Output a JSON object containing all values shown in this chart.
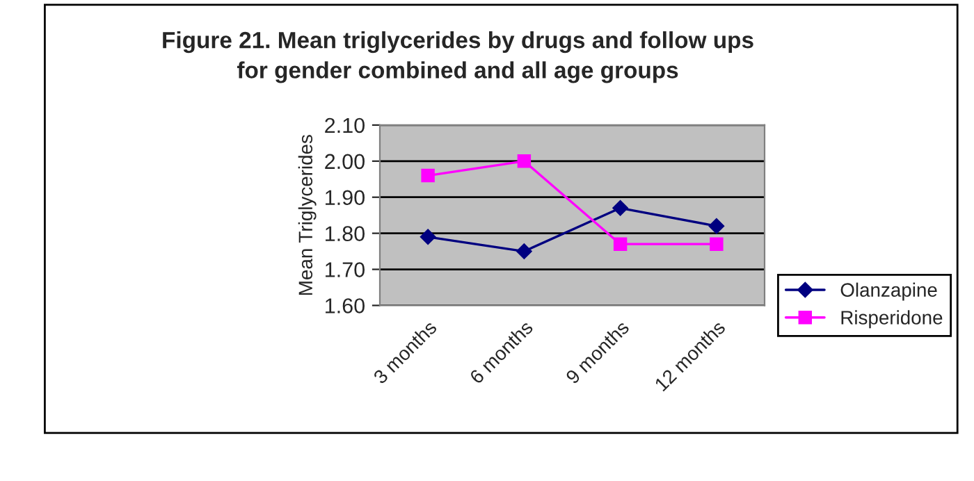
{
  "chart_data": {
    "type": "line",
    "title": "Figure 21. Mean triglycerides by drugs and follow ups\nfor gender combined and all age groups",
    "ylabel": "Mean Triglycerides",
    "categories": [
      "3 months",
      "6 months",
      "9 months",
      "12 months"
    ],
    "series": [
      {
        "name": "Olanzapine",
        "color": "#000080",
        "values": [
          1.79,
          1.75,
          1.87,
          1.82
        ],
        "marker": "diamond"
      },
      {
        "name": "Risperidone",
        "color": "#ff00ff",
        "values": [
          1.96,
          2.0,
          1.77,
          1.77
        ],
        "marker": "square"
      }
    ],
    "ylim": [
      1.6,
      2.1
    ],
    "yticks": [
      {
        "value": 1.6,
        "label": "1.60"
      },
      {
        "value": 1.7,
        "label": "1.70"
      },
      {
        "value": 1.8,
        "label": "1.80"
      },
      {
        "value": 1.9,
        "label": "1.90"
      },
      {
        "value": 2.0,
        "label": "2.00"
      },
      {
        "value": 2.1,
        "label": "2.10"
      }
    ],
    "grid": "y",
    "legend": "right",
    "line_style": "solid"
  }
}
